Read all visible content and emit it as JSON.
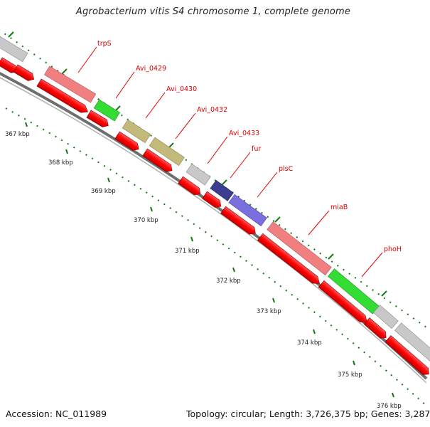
{
  "title": "Agrobacterium vitis S4 chromosome 1, complete genome",
  "footer": {
    "accession": "Accession: NC_011989",
    "info": "Topology: circular; Length: 3,726,375 bp; Genes: 3,287"
  },
  "colors": {
    "cds_red": "#ff0000",
    "backbone": "#7a7a7a",
    "tick_green": "#137a13",
    "label_red": "#e00000",
    "pink": "#f08080",
    "green": "#33dd33",
    "olive": "#c2b97a",
    "grey": "#c8c8c8",
    "navy": "#3d3d8f",
    "blue": "#7b6fe0"
  },
  "scale_labels": [
    "367 kbp",
    "368 kbp",
    "369 kbp",
    "370 kbp",
    "371 kbp",
    "372 kbp",
    "373 kbp",
    "374 kbp",
    "375 kbp",
    "376 kbp"
  ],
  "gene_labels": [
    "trpS",
    "Avi_0429",
    "Avi_0430",
    "Avi_0432",
    "Avi_0433",
    "fur",
    "plsC",
    "miaB",
    "phoH"
  ]
}
